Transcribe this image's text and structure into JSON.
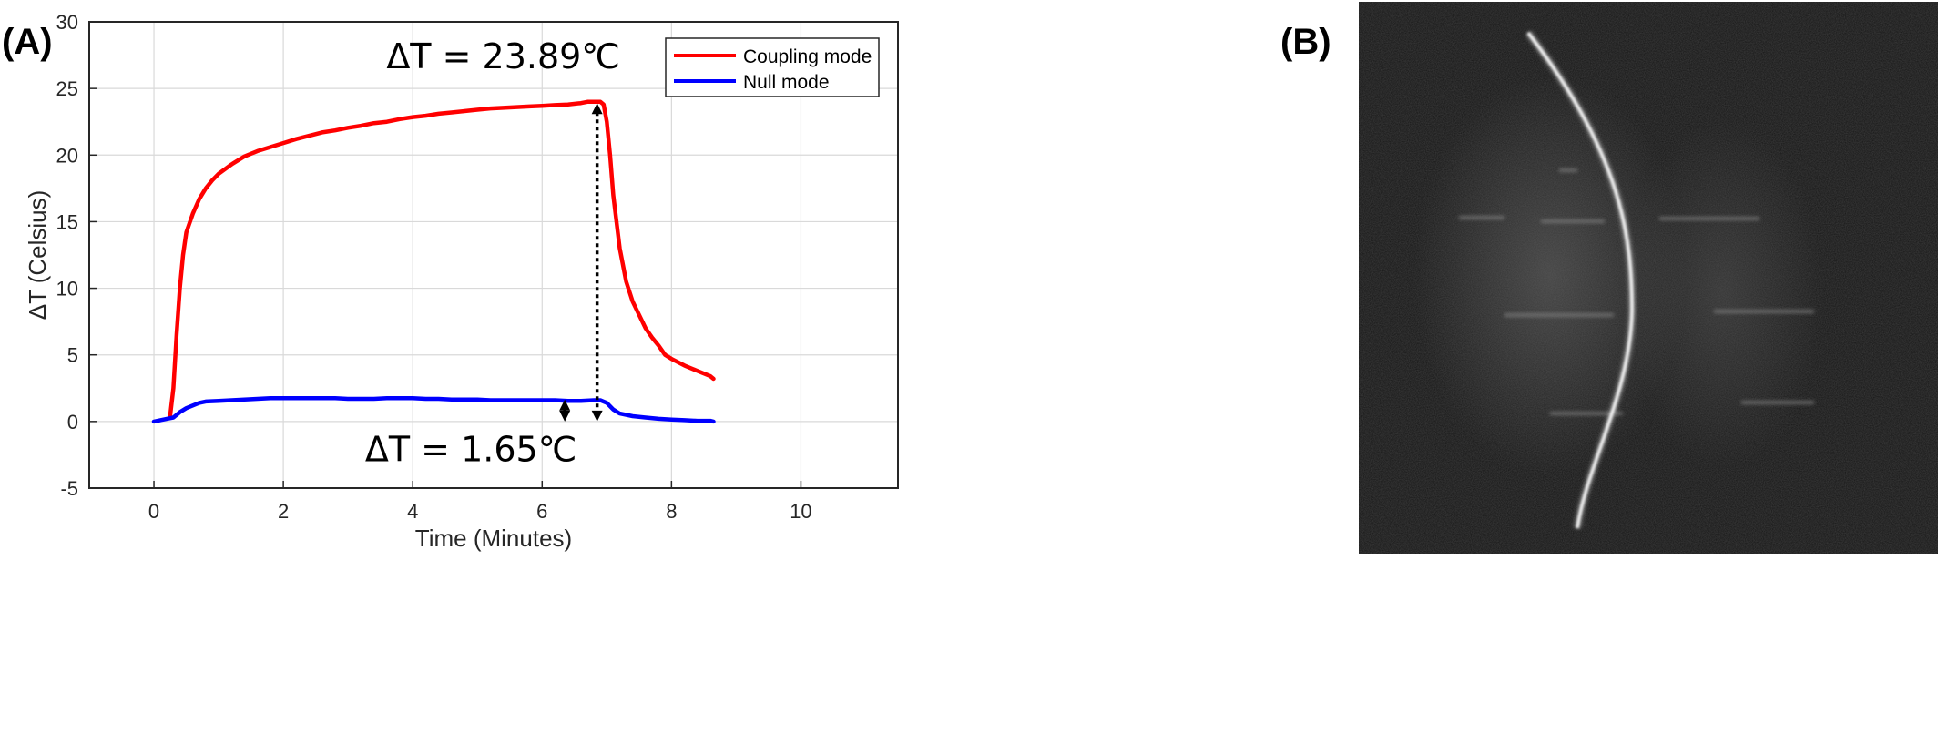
{
  "panels": {
    "a_label": "(A)",
    "b_label": "(B)"
  },
  "chart_data": {
    "type": "line",
    "xlabel": "Time (Minutes)",
    "ylabel": "ΔT (Celsius)",
    "xlim": [
      -1,
      11.5
    ],
    "ylim": [
      -5,
      30
    ],
    "xticks": [
      0,
      2,
      4,
      6,
      8,
      10
    ],
    "yticks": [
      -5,
      0,
      5,
      10,
      15,
      20,
      25,
      30
    ],
    "grid": true,
    "legend": "top-right",
    "series": [
      {
        "name": "Coupling mode",
        "color": "#ff0000",
        "x": [
          0.25,
          0.3,
          0.35,
          0.4,
          0.45,
          0.5,
          0.6,
          0.7,
          0.8,
          0.9,
          1.0,
          1.2,
          1.4,
          1.6,
          1.8,
          2.0,
          2.2,
          2.4,
          2.6,
          2.8,
          3.0,
          3.2,
          3.4,
          3.6,
          3.8,
          4.0,
          4.2,
          4.4,
          4.6,
          4.8,
          5.0,
          5.2,
          5.4,
          5.6,
          5.8,
          6.0,
          6.2,
          6.4,
          6.6,
          6.7,
          6.8,
          6.9,
          6.95,
          7.0,
          7.05,
          7.1,
          7.2,
          7.3,
          7.4,
          7.5,
          7.6,
          7.7,
          7.8,
          7.9,
          8.0,
          8.2,
          8.4,
          8.6,
          8.65
        ],
        "y": [
          0.4,
          2.5,
          6.5,
          10.0,
          12.5,
          14.2,
          15.6,
          16.7,
          17.5,
          18.1,
          18.6,
          19.3,
          19.9,
          20.3,
          20.6,
          20.9,
          21.2,
          21.45,
          21.7,
          21.85,
          22.05,
          22.2,
          22.4,
          22.5,
          22.7,
          22.85,
          22.95,
          23.1,
          23.2,
          23.3,
          23.4,
          23.5,
          23.55,
          23.6,
          23.65,
          23.7,
          23.75,
          23.8,
          23.9,
          24.0,
          24.0,
          24.0,
          23.8,
          22.5,
          20.0,
          17.0,
          13.0,
          10.5,
          9.0,
          8.0,
          7.0,
          6.3,
          5.7,
          5.0,
          4.7,
          4.2,
          3.8,
          3.4,
          3.2
        ]
      },
      {
        "name": "Null mode",
        "color": "#0000ff",
        "x": [
          0.0,
          0.1,
          0.2,
          0.3,
          0.4,
          0.5,
          0.6,
          0.7,
          0.8,
          1.0,
          1.2,
          1.4,
          1.6,
          1.8,
          2.0,
          2.2,
          2.4,
          2.6,
          2.8,
          3.0,
          3.2,
          3.4,
          3.6,
          3.8,
          4.0,
          4.2,
          4.4,
          4.6,
          4.8,
          5.0,
          5.2,
          5.4,
          5.6,
          5.8,
          6.0,
          6.2,
          6.4,
          6.6,
          6.8,
          6.9,
          7.0,
          7.1,
          7.2,
          7.4,
          7.6,
          7.8,
          8.0,
          8.2,
          8.4,
          8.6,
          8.65
        ],
        "y": [
          0.0,
          0.1,
          0.2,
          0.3,
          0.7,
          1.0,
          1.2,
          1.4,
          1.5,
          1.55,
          1.6,
          1.65,
          1.7,
          1.75,
          1.75,
          1.75,
          1.75,
          1.75,
          1.75,
          1.7,
          1.7,
          1.7,
          1.75,
          1.75,
          1.75,
          1.7,
          1.7,
          1.65,
          1.65,
          1.65,
          1.6,
          1.6,
          1.6,
          1.6,
          1.6,
          1.6,
          1.55,
          1.55,
          1.6,
          1.6,
          1.4,
          0.9,
          0.6,
          0.4,
          0.3,
          0.2,
          0.15,
          0.1,
          0.05,
          0.05,
          0.0
        ]
      }
    ],
    "annotations": [
      {
        "text": "ΔT = 23.89℃",
        "x": 5.4,
        "y": 26.5
      },
      {
        "text": "ΔT = 1.65℃",
        "x": 4.9,
        "y": -3.0
      }
    ],
    "arrows": [
      {
        "x": 6.85,
        "y_from": 0.0,
        "y_to": 23.9,
        "style": "dotted"
      },
      {
        "x": 6.35,
        "y_from": 0.0,
        "y_to": 1.65,
        "style": "solid"
      }
    ]
  },
  "image_b": {
    "description_icon": "mri-image-icon"
  }
}
